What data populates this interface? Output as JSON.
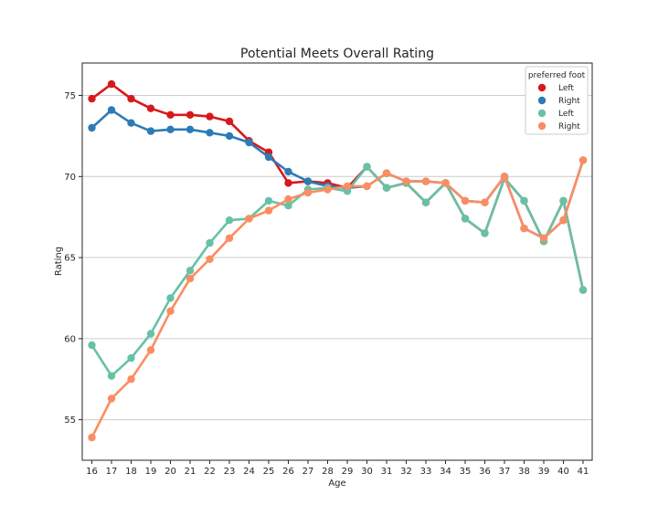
{
  "chart_data": {
    "type": "line",
    "title": "Potential Meets Overall Rating",
    "xlabel": "Age",
    "ylabel": "Rating",
    "categories": [
      "16",
      "17",
      "18",
      "19",
      "20",
      "21",
      "22",
      "23",
      "24",
      "25",
      "26",
      "27",
      "28",
      "29",
      "30",
      "31",
      "32",
      "33",
      "34",
      "35",
      "36",
      "37",
      "38",
      "39",
      "40",
      "41"
    ],
    "ylim": [
      52.5,
      77
    ],
    "yticks": [
      55,
      60,
      65,
      70,
      75
    ],
    "grid": "horizontal",
    "legend": {
      "title": "preferred foot",
      "placement": "top-right"
    },
    "series": [
      {
        "name": "Left",
        "color": "#d7191c",
        "group": "potential",
        "values": [
          74.8,
          75.7,
          74.8,
          74.2,
          73.8,
          73.8,
          73.7,
          73.4,
          72.2,
          71.5,
          69.6,
          69.7,
          69.6,
          69.3,
          70.6,
          69.3,
          69.6,
          68.4,
          69.6,
          67.4,
          66.5,
          69.9,
          68.5,
          66.0,
          68.5,
          63.0
        ]
      },
      {
        "name": "Right",
        "color": "#2c7bb6",
        "group": "potential",
        "values": [
          73.0,
          74.1,
          73.3,
          72.8,
          72.9,
          72.9,
          72.7,
          72.5,
          72.1,
          71.2,
          70.3,
          69.7,
          69.4,
          69.3,
          69.4,
          70.2,
          69.7,
          69.7,
          69.6,
          68.5,
          68.4,
          70.0,
          66.8,
          66.2,
          67.3,
          71.0
        ]
      },
      {
        "name": "Left",
        "color": "#66c2a5",
        "group": "overall",
        "values": [
          59.6,
          57.7,
          58.8,
          60.3,
          62.5,
          64.2,
          65.9,
          67.3,
          67.4,
          68.5,
          68.2,
          69.2,
          69.3,
          69.1,
          70.6,
          69.3,
          69.6,
          68.4,
          69.6,
          67.4,
          66.5,
          69.9,
          68.5,
          66.0,
          68.5,
          63.0
        ]
      },
      {
        "name": "Right",
        "color": "#fc8d62",
        "group": "overall",
        "values": [
          53.9,
          56.3,
          57.5,
          59.3,
          61.7,
          63.7,
          64.9,
          66.2,
          67.4,
          67.9,
          68.6,
          69.0,
          69.2,
          69.4,
          69.4,
          70.2,
          69.7,
          69.7,
          69.6,
          68.5,
          68.4,
          70.0,
          66.8,
          66.2,
          67.3,
          71.0
        ]
      }
    ]
  }
}
